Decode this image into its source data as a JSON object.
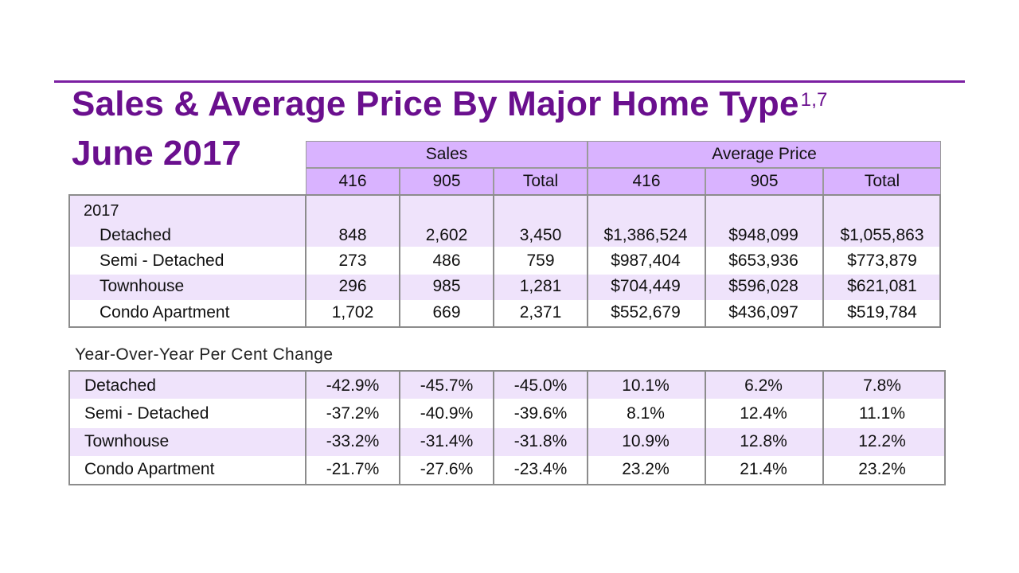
{
  "title": "Sales & Average Price By Major Home Type",
  "title_superscript": "1,7",
  "subtitle": "June 2017",
  "header": {
    "groups": [
      "Sales",
      "Average Price"
    ],
    "columns": [
      "416",
      "905",
      "Total",
      "416",
      "905",
      "Total"
    ]
  },
  "section_label": "2017",
  "rows_2017": [
    {
      "label": "Detached",
      "values": [
        "848",
        "2,602",
        "3,450",
        "$1,386,524",
        "$948,099",
        "$1,055,863"
      ]
    },
    {
      "label": "Semi - Detached",
      "values": [
        "273",
        "486",
        "759",
        "$987,404",
        "$653,936",
        "$773,879"
      ]
    },
    {
      "label": "Townhouse",
      "values": [
        "296",
        "985",
        "1,281",
        "$704,449",
        "$596,028",
        "$621,081"
      ]
    },
    {
      "label": "Condo Apartment",
      "values": [
        "1,702",
        "669",
        "2,371",
        "$552,679",
        "$436,097",
        "$519,784"
      ]
    }
  ],
  "yoy_title": "Year-Over-Year Per Cent Change",
  "rows_yoy": [
    {
      "label": "Detached",
      "values": [
        "-42.9%",
        "-45.7%",
        "-45.0%",
        "10.1%",
        "6.2%",
        "7.8%"
      ]
    },
    {
      "label": "Semi - Detached",
      "values": [
        "-37.2%",
        "-40.9%",
        "-39.6%",
        "8.1%",
        "12.4%",
        "11.1%"
      ]
    },
    {
      "label": "Townhouse",
      "values": [
        "-33.2%",
        "-31.4%",
        "-31.8%",
        "10.9%",
        "12.8%",
        "12.2%"
      ]
    },
    {
      "label": "Condo Apartment",
      "values": [
        "-21.7%",
        "-27.6%",
        "-23.4%",
        "23.2%",
        "21.4%",
        "23.2%"
      ]
    }
  ],
  "colors": {
    "accent": "#6a0f8e",
    "header_fill": "#d9b3ff",
    "band_fill": "#efe3fb"
  }
}
